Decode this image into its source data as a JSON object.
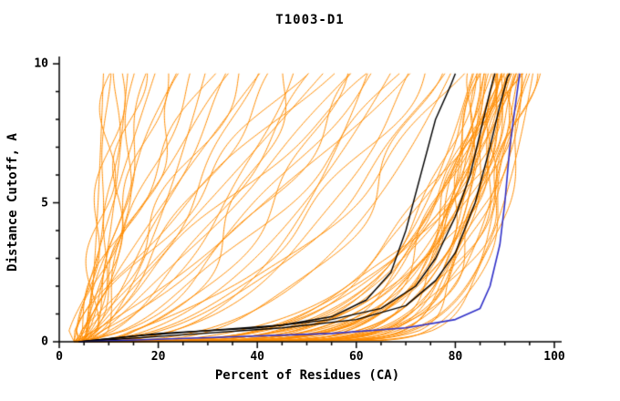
{
  "chart_data": {
    "type": "line",
    "title": "T1003-D1",
    "xlabel": "Percent of Residues (CA)",
    "ylabel": "Distance Cutoff, A",
    "xlim": [
      0,
      100
    ],
    "ylim": [
      0,
      10
    ],
    "x_ticks_major": [
      0,
      20,
      40,
      60,
      80,
      100
    ],
    "x_tick_minor_step": 5,
    "y_ticks_major": [
      0,
      5,
      10
    ],
    "y_tick_minor_step": 1,
    "grid": false,
    "legend": "none",
    "colors": {
      "orange": "#FF8C00",
      "black": "#000000",
      "blue": "#3030C8",
      "axis": "#000000"
    },
    "orange_curves": {
      "model": "x(y) = x0 + (xtop - x0) * (y/10)^p, y from 0 to y_max",
      "y_max": 9.65,
      "params": [
        [
          3,
          96,
          0.1
        ],
        [
          4,
          95,
          0.08
        ],
        [
          3,
          95,
          0.12
        ],
        [
          5,
          94,
          0.09
        ],
        [
          4,
          94,
          0.13
        ],
        [
          3,
          93,
          0.1
        ],
        [
          5,
          93,
          0.07
        ],
        [
          4,
          92,
          0.11
        ],
        [
          3,
          92,
          0.14
        ],
        [
          5,
          91,
          0.09
        ],
        [
          4,
          91,
          0.12
        ],
        [
          3,
          90,
          0.1
        ],
        [
          5,
          90,
          0.08
        ],
        [
          4,
          89,
          0.12
        ],
        [
          3,
          89,
          0.15
        ],
        [
          5,
          88,
          0.1
        ],
        [
          4,
          88,
          0.08
        ],
        [
          3,
          87,
          0.12
        ],
        [
          5,
          87,
          0.14
        ],
        [
          4,
          86,
          0.1
        ],
        [
          3,
          86,
          0.08
        ],
        [
          5,
          85,
          0.12
        ],
        [
          4,
          85,
          0.15
        ],
        [
          3,
          84,
          0.1
        ],
        [
          4,
          96,
          0.15
        ],
        [
          5,
          95,
          0.18
        ],
        [
          3,
          94,
          0.2
        ],
        [
          4,
          93,
          0.18
        ],
        [
          5,
          92,
          0.2
        ],
        [
          3,
          91,
          0.17
        ],
        [
          4,
          90,
          0.19
        ],
        [
          5,
          89,
          0.16
        ],
        [
          3,
          88,
          0.18
        ],
        [
          4,
          87,
          0.2
        ],
        [
          5,
          86,
          0.17
        ],
        [
          4,
          84,
          0.19
        ],
        [
          3,
          85,
          0.21
        ],
        [
          5,
          94,
          0.25
        ],
        [
          4,
          92,
          0.24
        ],
        [
          3,
          90,
          0.26
        ],
        [
          5,
          88,
          0.23
        ],
        [
          4,
          86,
          0.25
        ],
        [
          3,
          93,
          0.28
        ],
        [
          5,
          91,
          0.27
        ],
        [
          4,
          89,
          0.3
        ],
        [
          4,
          80,
          0.35
        ],
        [
          3,
          78,
          0.45
        ],
        [
          5,
          75,
          0.55
        ],
        [
          4,
          72,
          0.4
        ],
        [
          3,
          70,
          0.65
        ],
        [
          5,
          68,
          0.5
        ],
        [
          4,
          65,
          0.75
        ],
        [
          3,
          62,
          0.6
        ],
        [
          5,
          60,
          0.85
        ],
        [
          4,
          58,
          0.45
        ],
        [
          3,
          55,
          0.95
        ],
        [
          5,
          52,
          0.7
        ],
        [
          4,
          50,
          1.05
        ],
        [
          3,
          48,
          0.55
        ],
        [
          5,
          45,
          0.9
        ],
        [
          4,
          42,
          1.15
        ],
        [
          3,
          40,
          0.65
        ],
        [
          5,
          38,
          1.0
        ],
        [
          4,
          35,
          0.8
        ],
        [
          3,
          32,
          1.2
        ],
        [
          5,
          30,
          0.6
        ],
        [
          4,
          28,
          1.0
        ],
        [
          3,
          26,
          0.75
        ],
        [
          5,
          24,
          1.25
        ],
        [
          4,
          22,
          0.9
        ],
        [
          3,
          20,
          1.1
        ],
        [
          5,
          18,
          0.7
        ],
        [
          4,
          76,
          0.3
        ],
        [
          3,
          73,
          0.85
        ],
        [
          5,
          66,
          1.1
        ],
        [
          4,
          63,
          0.35
        ],
        [
          3,
          57,
          1.25
        ],
        [
          5,
          47,
          0.4
        ],
        [
          4,
          36,
          1.3
        ],
        [
          3,
          82,
          0.5
        ],
        [
          4,
          14,
          0.5
        ],
        [
          3,
          12,
          0.3
        ],
        [
          5,
          11,
          0.7
        ],
        [
          4,
          10,
          0.4
        ],
        [
          3,
          13,
          0.9
        ],
        [
          5,
          9,
          0.5
        ],
        [
          4,
          15,
          0.25
        ],
        [
          3,
          16,
          0.6
        ]
      ]
    },
    "black_curves": [
      [
        [
          4,
          0
        ],
        [
          15,
          0.2
        ],
        [
          30,
          0.4
        ],
        [
          45,
          0.6
        ],
        [
          55,
          0.9
        ],
        [
          62,
          1.5
        ],
        [
          67,
          2.5
        ],
        [
          70,
          4.0
        ],
        [
          73,
          6.0
        ],
        [
          76,
          8.0
        ],
        [
          79,
          9.2
        ],
        [
          80,
          9.65
        ]
      ],
      [
        [
          4,
          0
        ],
        [
          20,
          0.3
        ],
        [
          40,
          0.5
        ],
        [
          55,
          0.8
        ],
        [
          65,
          1.2
        ],
        [
          72,
          2.0
        ],
        [
          76,
          3.0
        ],
        [
          80,
          4.5
        ],
        [
          83,
          6.0
        ],
        [
          85,
          7.5
        ],
        [
          87,
          9.0
        ],
        [
          88,
          9.65
        ]
      ],
      [
        [
          4,
          0
        ],
        [
          25,
          0.25
        ],
        [
          45,
          0.5
        ],
        [
          60,
          0.8
        ],
        [
          70,
          1.3
        ],
        [
          76,
          2.2
        ],
        [
          80,
          3.2
        ],
        [
          84,
          5.0
        ],
        [
          87,
          7.0
        ],
        [
          89,
          8.5
        ],
        [
          90.5,
          9.5
        ],
        [
          91,
          9.65
        ]
      ]
    ],
    "blue_curve": [
      [
        4,
        0
      ],
      [
        30,
        0.15
      ],
      [
        55,
        0.3
      ],
      [
        70,
        0.5
      ],
      [
        80,
        0.8
      ],
      [
        85,
        1.2
      ],
      [
        87,
        2.0
      ],
      [
        89,
        3.5
      ],
      [
        90,
        5.0
      ],
      [
        91,
        7.0
      ],
      [
        92.5,
        9.0
      ],
      [
        93,
        9.65
      ]
    ]
  }
}
